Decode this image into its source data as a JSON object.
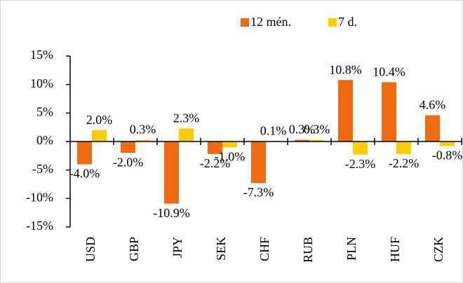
{
  "chart_data": {
    "type": "bar",
    "categories": [
      "USD",
      "GBP",
      "JPY",
      "SEK",
      "CHF",
      "RUB",
      "PLN",
      "HUF",
      "CZK"
    ],
    "series": [
      {
        "name": "12 mén.",
        "color": "#f26a10",
        "values": [
          -4.0,
          -2.0,
          -10.9,
          -2.2,
          -7.3,
          0.3,
          10.8,
          10.4,
          4.6
        ],
        "value_labels": [
          "-4.0%",
          "-2.0%",
          "-10.9%",
          "-2.2%",
          "-7.3%",
          "0.3%",
          "10.8%",
          "10.4%",
          "4.6%"
        ]
      },
      {
        "name": "7 d.",
        "color": "#ffcc00",
        "values": [
          2.0,
          0.3,
          2.3,
          -1.0,
          0.1,
          0.3,
          -2.3,
          -2.2,
          -0.8
        ],
        "value_labels": [
          "2.0%",
          "0.3%",
          "2.3%",
          "-1.0%",
          "0.1%",
          "0.3%",
          "-2.3%",
          "-2.2%",
          "-0.8%"
        ]
      }
    ],
    "ylim": [
      -15,
      15
    ],
    "yticks": [
      {
        "value": -15,
        "label": "-15%"
      },
      {
        "value": -10,
        "label": "-10%"
      },
      {
        "value": -5,
        "label": "-5%"
      },
      {
        "value": 0,
        "label": "0%"
      },
      {
        "value": 5,
        "label": "5%"
      },
      {
        "value": 10,
        "label": "10%"
      },
      {
        "value": 15,
        "label": "15%"
      }
    ],
    "legend": "top"
  }
}
